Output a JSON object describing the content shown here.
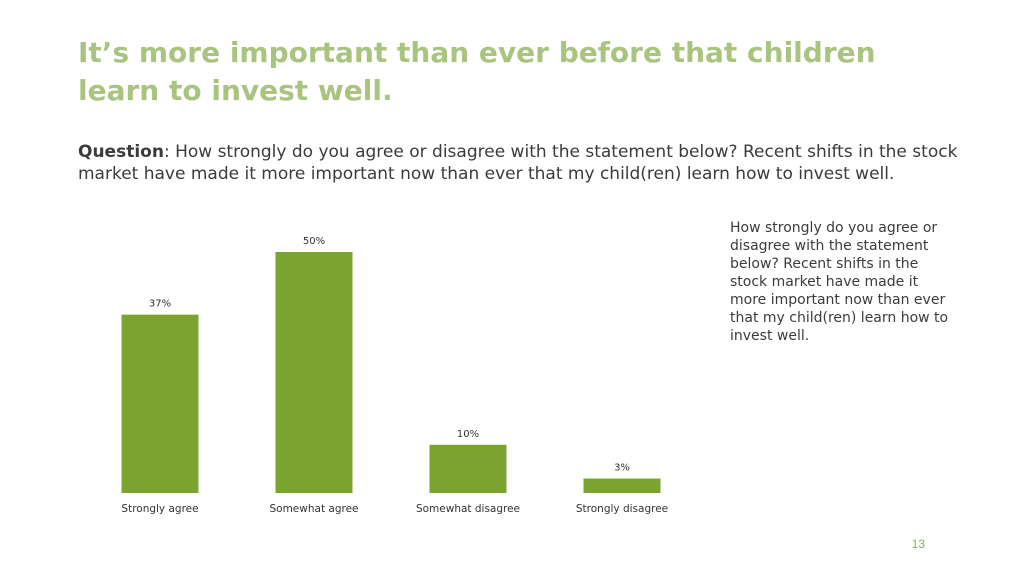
{
  "slide": {
    "title": "It’s more important than ever before that children learn to invest well.",
    "question_label": "Question",
    "question_text": ": How strongly do you agree or disagree with the statement below? Recent shifts in the stock market have made it more important now than ever that my child(ren) learn how to invest well.",
    "side_note": "How strongly do you agree or disagree with the statement below? Recent shifts in the stock market have made it more important now than ever that my child(ren) learn how to invest well.",
    "page_number": "13"
  },
  "chart_data": {
    "type": "bar",
    "categories": [
      "Strongly agree",
      "Somewhat agree",
      "Somewhat disagree",
      "Strongly disagree"
    ],
    "values": [
      37,
      50,
      10,
      3
    ],
    "data_labels": [
      "37%",
      "50%",
      "10%",
      "3%"
    ],
    "unit": "%",
    "title": "",
    "xlabel": "",
    "ylabel": "",
    "ylim": [
      0,
      50
    ],
    "grid": false,
    "legend": "none",
    "bar_color": "#7aa330"
  },
  "colors": {
    "title": "#a9c47f",
    "text": "#3b3b3b",
    "bar": "#7aa330",
    "page_number": "#8db23f"
  }
}
